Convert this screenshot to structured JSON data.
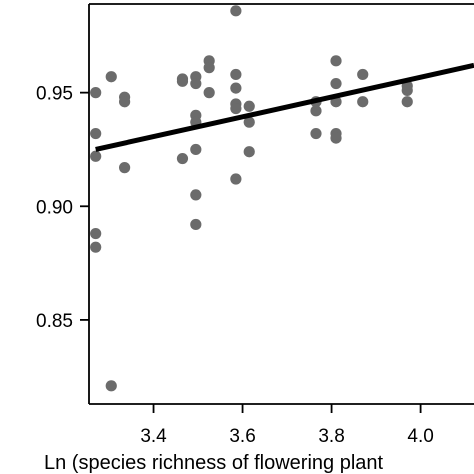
{
  "chart_data": {
    "type": "scatter",
    "title": "",
    "xlabel": "Ln (species richness of flowering plant",
    "ylabel": "",
    "xlim": [
      3.255,
      4.12
    ],
    "ylim": [
      0.813,
      0.989
    ],
    "x_ticks": [
      3.4,
      3.6,
      3.8,
      4.0
    ],
    "x_tick_labels": [
      "3.4",
      "3.6",
      "3.8",
      "4.0"
    ],
    "y_ticks": [
      0.85,
      0.9,
      0.95
    ],
    "y_tick_labels": [
      "0.85",
      "0.90",
      "0.95"
    ],
    "grid": false,
    "legend": "none",
    "colors": {
      "points": "#6b6b6b",
      "trend": "#000000",
      "axes": "#000000"
    },
    "series": [
      {
        "points": [
          {
            "x": 3.27,
            "y": 0.95
          },
          {
            "x": 3.27,
            "y": 0.932
          },
          {
            "x": 3.27,
            "y": 0.922
          },
          {
            "x": 3.27,
            "y": 0.888
          },
          {
            "x": 3.27,
            "y": 0.882
          },
          {
            "x": 3.305,
            "y": 0.957
          },
          {
            "x": 3.305,
            "y": 0.821
          },
          {
            "x": 3.335,
            "y": 0.948
          },
          {
            "x": 3.335,
            "y": 0.946
          },
          {
            "x": 3.335,
            "y": 0.917
          },
          {
            "x": 3.465,
            "y": 0.956
          },
          {
            "x": 3.465,
            "y": 0.955
          },
          {
            "x": 3.465,
            "y": 0.921
          },
          {
            "x": 3.495,
            "y": 0.957
          },
          {
            "x": 3.495,
            "y": 0.954
          },
          {
            "x": 3.495,
            "y": 0.94
          },
          {
            "x": 3.495,
            "y": 0.937
          },
          {
            "x": 3.495,
            "y": 0.925
          },
          {
            "x": 3.495,
            "y": 0.905
          },
          {
            "x": 3.495,
            "y": 0.892
          },
          {
            "x": 3.525,
            "y": 0.964
          },
          {
            "x": 3.525,
            "y": 0.961
          },
          {
            "x": 3.525,
            "y": 0.95
          },
          {
            "x": 3.585,
            "y": 0.986
          },
          {
            "x": 3.585,
            "y": 0.958
          },
          {
            "x": 3.585,
            "y": 0.952
          },
          {
            "x": 3.585,
            "y": 0.945
          },
          {
            "x": 3.585,
            "y": 0.943
          },
          {
            "x": 3.585,
            "y": 0.912
          },
          {
            "x": 3.615,
            "y": 0.944
          },
          {
            "x": 3.615,
            "y": 0.937
          },
          {
            "x": 3.615,
            "y": 0.924
          },
          {
            "x": 3.765,
            "y": 0.946
          },
          {
            "x": 3.765,
            "y": 0.942
          },
          {
            "x": 3.765,
            "y": 0.932
          },
          {
            "x": 3.81,
            "y": 0.964
          },
          {
            "x": 3.81,
            "y": 0.954
          },
          {
            "x": 3.81,
            "y": 0.946
          },
          {
            "x": 3.81,
            "y": 0.932
          },
          {
            "x": 3.81,
            "y": 0.93
          },
          {
            "x": 3.87,
            "y": 0.958
          },
          {
            "x": 3.87,
            "y": 0.946
          },
          {
            "x": 3.97,
            "y": 0.953
          },
          {
            "x": 3.97,
            "y": 0.951
          },
          {
            "x": 3.97,
            "y": 0.946
          }
        ]
      }
    ],
    "trend_line": {
      "x": [
        3.27,
        4.12
      ],
      "y": [
        0.925,
        0.962
      ]
    }
  }
}
